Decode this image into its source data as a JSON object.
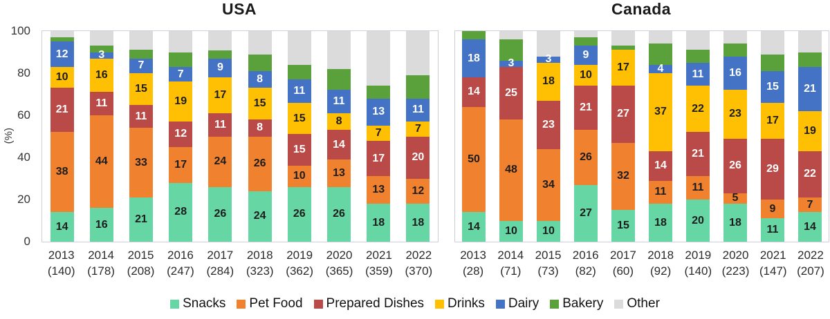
{
  "figure": {
    "y_axis_label": "(%)",
    "legend_items": [
      {
        "label": "Snacks",
        "color": "#66D6A4"
      },
      {
        "label": "Pet Food",
        "color": "#F0812F"
      },
      {
        "label": "Prepared Dishes",
        "color": "#BA4A47"
      },
      {
        "label": "Drinks",
        "color": "#FFC003"
      },
      {
        "label": "Dairy",
        "color": "#4472C4"
      },
      {
        "label": "Bakery",
        "color": "#5BA13B"
      },
      {
        "label": "Other",
        "color": "#DBDBDB"
      }
    ]
  },
  "chart_data": [
    {
      "type": "bar",
      "stacked": true,
      "units": "percent",
      "title": "USA",
      "ylabel": "(%)",
      "ylim": [
        0,
        100
      ],
      "yticks": [
        0,
        20,
        40,
        60,
        80,
        100
      ],
      "grid": false,
      "legend_position": "bottom",
      "categories": [
        "2013",
        "2014",
        "2015",
        "2016",
        "2017",
        "2018",
        "2019",
        "2020",
        "2021",
        "2022"
      ],
      "sample_sizes": [
        140,
        178,
        208,
        247,
        284,
        323,
        362,
        365,
        359,
        370
      ],
      "label_min_value": 3,
      "series": [
        {
          "name": "Snacks",
          "color": "#66D6A4",
          "labeled": true,
          "label_color": "#1c1c1c",
          "values": [
            14,
            16,
            21,
            28,
            26,
            24,
            26,
            26,
            18,
            18
          ]
        },
        {
          "name": "Pet Food",
          "color": "#F0812F",
          "labeled": true,
          "label_color": "#1c1c1c",
          "values": [
            38,
            44,
            33,
            17,
            24,
            26,
            10,
            13,
            13,
            12
          ]
        },
        {
          "name": "Prepared Dishes",
          "color": "#BA4A47",
          "labeled": true,
          "label_color": "#ffffff",
          "values": [
            21,
            11,
            11,
            12,
            11,
            8,
            15,
            14,
            17,
            20
          ]
        },
        {
          "name": "Drinks",
          "color": "#FFC003",
          "labeled": true,
          "label_color": "#1c1c1c",
          "values": [
            10,
            16,
            15,
            19,
            17,
            15,
            15,
            8,
            7,
            7
          ]
        },
        {
          "name": "Dairy",
          "color": "#4472C4",
          "labeled": true,
          "label_color": "#ffffff",
          "values": [
            12,
            3,
            7,
            7,
            9,
            8,
            11,
            11,
            13,
            11
          ]
        },
        {
          "name": "Bakery",
          "color": "#5BA13B",
          "labeled": false,
          "values_estimated": true,
          "values": [
            2,
            3,
            4,
            7,
            4,
            8,
            7,
            10,
            6,
            11
          ]
        },
        {
          "name": "Other",
          "color": "#DBDBDB",
          "labeled": false,
          "values_estimated": true,
          "values": [
            3,
            7,
            9,
            10,
            9,
            11,
            16,
            18,
            26,
            21
          ]
        }
      ]
    },
    {
      "type": "bar",
      "stacked": true,
      "units": "percent",
      "title": "Canada",
      "ylabel": "(%)",
      "ylim": [
        0,
        100
      ],
      "yticks": [
        0,
        20,
        40,
        60,
        80,
        100
      ],
      "grid": false,
      "legend_position": "bottom",
      "categories": [
        "2013",
        "2014",
        "2015",
        "2016",
        "2017",
        "2018",
        "2019",
        "2020",
        "2021",
        "2022"
      ],
      "sample_sizes": [
        28,
        71,
        73,
        82,
        60,
        92,
        140,
        223,
        147,
        207
      ],
      "label_min_value": 3,
      "series": [
        {
          "name": "Snacks",
          "color": "#66D6A4",
          "labeled": true,
          "label_color": "#1c1c1c",
          "values": [
            14,
            10,
            10,
            27,
            15,
            18,
            20,
            18,
            11,
            14
          ]
        },
        {
          "name": "Pet Food",
          "color": "#F0812F",
          "labeled": true,
          "label_color": "#1c1c1c",
          "values": [
            50,
            48,
            34,
            26,
            32,
            11,
            11,
            5,
            9,
            7
          ]
        },
        {
          "name": "Prepared Dishes",
          "color": "#BA4A47",
          "labeled": true,
          "label_color": "#ffffff",
          "values": [
            14,
            25,
            23,
            21,
            27,
            14,
            21,
            26,
            29,
            22
          ]
        },
        {
          "name": "Drinks",
          "color": "#FFC003",
          "labeled": true,
          "label_color": "#1c1c1c",
          "values": [
            0,
            0,
            18,
            10,
            17,
            37,
            22,
            23,
            17,
            19
          ]
        },
        {
          "name": "Dairy",
          "color": "#4472C4",
          "labeled": true,
          "label_color": "#ffffff",
          "values": [
            18,
            3,
            3,
            9,
            0,
            4,
            11,
            16,
            15,
            21
          ]
        },
        {
          "name": "Bakery",
          "color": "#5BA13B",
          "labeled": false,
          "values_estimated": true,
          "values": [
            4,
            10,
            0,
            4,
            2,
            10,
            6,
            6,
            8,
            7
          ]
        },
        {
          "name": "Other",
          "color": "#DBDBDB",
          "labeled": false,
          "values_estimated": true,
          "values": [
            0,
            4,
            12,
            3,
            7,
            6,
            9,
            6,
            11,
            10
          ]
        }
      ]
    }
  ]
}
